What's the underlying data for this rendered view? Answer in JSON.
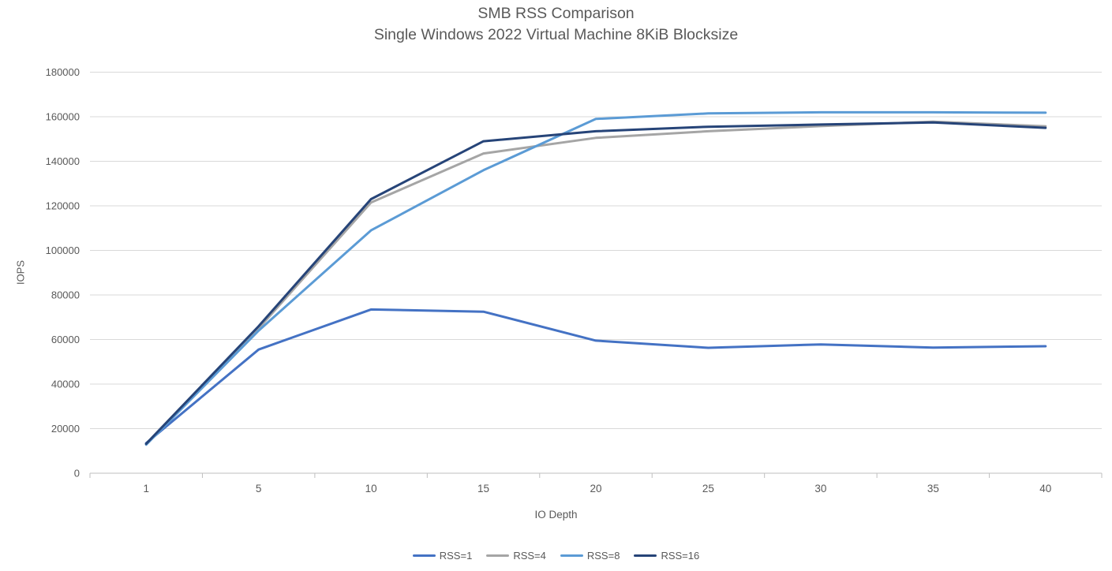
{
  "title": {
    "line1": "SMB RSS Comparison",
    "line2": "Single Windows 2022 Virtual Machine 8KiB Blocksize"
  },
  "axes": {
    "y_label": "IOPS",
    "x_label": "IO Depth"
  },
  "colors": {
    "gridline": "#d9d9d9",
    "axis_line": "#bfbfbf",
    "tick_text": "#595959",
    "title_text": "#595959"
  },
  "chart_data": {
    "type": "line",
    "title": "SMB RSS Comparison",
    "subtitle": "Single Windows 2022 Virtual Machine 8KiB Blocksize",
    "xlabel": "IO Depth",
    "ylabel": "IOPS",
    "x": [
      1,
      5,
      10,
      15,
      20,
      25,
      30,
      35,
      40
    ],
    "x_tick_labels": [
      "1",
      "5",
      "10",
      "15",
      "20",
      "25",
      "30",
      "35",
      "40"
    ],
    "ylim": [
      0,
      180000
    ],
    "ytick_step": 20000,
    "ytick_labels": [
      "0",
      "20000",
      "40000",
      "60000",
      "80000",
      "100000",
      "120000",
      "140000",
      "160000",
      "180000"
    ],
    "grid": true,
    "legend_position": "bottom",
    "series": [
      {
        "name": "RSS=1",
        "color": "#4472C4",
        "values": [
          13500,
          55500,
          73500,
          72500,
          59500,
          56300,
          57800,
          56400,
          57000
        ]
      },
      {
        "name": "RSS=4",
        "color": "#A5A5A5",
        "values": [
          13000,
          65000,
          121500,
          143500,
          150500,
          153500,
          155800,
          157800,
          155700
        ]
      },
      {
        "name": "RSS=8",
        "color": "#5B9BD5",
        "values": [
          12800,
          64000,
          109000,
          136000,
          159000,
          161500,
          162000,
          162000,
          161800
        ]
      },
      {
        "name": "RSS=16",
        "color": "#264478",
        "values": [
          13200,
          66000,
          123000,
          149000,
          153500,
          155500,
          156500,
          157400,
          155000
        ]
      }
    ]
  }
}
